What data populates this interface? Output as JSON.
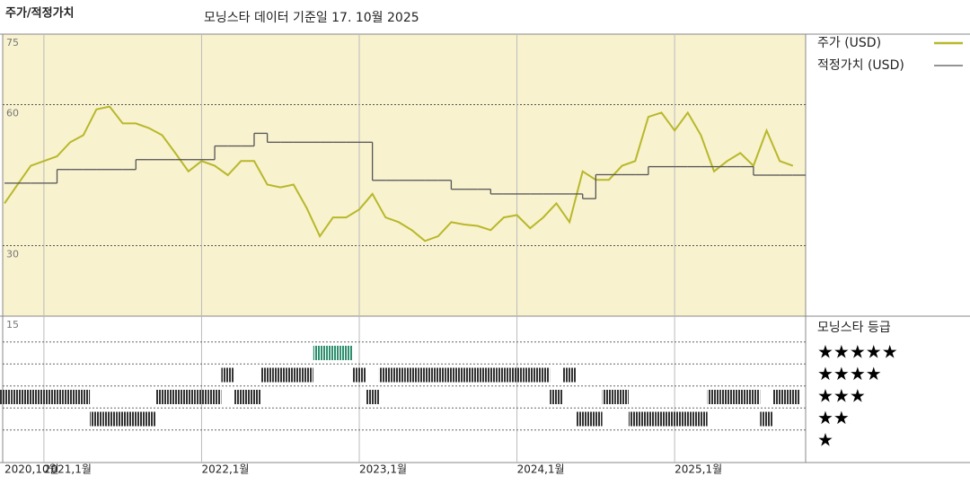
{
  "title": "주가/적정가치",
  "subtitle": "모닝스타 데이터 기준일 17. 10월 2025",
  "chart_data": {
    "type": "line",
    "x": [
      "2020-10",
      "2020-11",
      "2020-12",
      "2021-01",
      "2021-02",
      "2021-03",
      "2021-04",
      "2021-05",
      "2021-06",
      "2021-07",
      "2021-08",
      "2021-09",
      "2021-10",
      "2021-11",
      "2021-12",
      "2022-01",
      "2022-02",
      "2022-03",
      "2022-04",
      "2022-05",
      "2022-06",
      "2022-07",
      "2022-08",
      "2022-09",
      "2022-10",
      "2022-11",
      "2022-12",
      "2023-01",
      "2023-02",
      "2023-03",
      "2023-04",
      "2023-05",
      "2023-06",
      "2023-07",
      "2023-08",
      "2023-09",
      "2023-10",
      "2023-11",
      "2023-12",
      "2024-01",
      "2024-02",
      "2024-03",
      "2024-04",
      "2024-05",
      "2024-06",
      "2024-07",
      "2024-08",
      "2024-09",
      "2024-10",
      "2024-11",
      "2024-12",
      "2025-01",
      "2025-02",
      "2025-03",
      "2025-04",
      "2025-05",
      "2025-06",
      "2025-07",
      "2025-08",
      "2025-09",
      "2025-10"
    ],
    "series": [
      {
        "name": "주가 (USD)",
        "color": "#b8b82a",
        "values": [
          39,
          43,
          47,
          48,
          49,
          52,
          53.5,
          59,
          59.6,
          56,
          56,
          55,
          53.5,
          49.7,
          45.8,
          48,
          47,
          45,
          48,
          48,
          43,
          42.4,
          43,
          38,
          32,
          36,
          36,
          37.7,
          41,
          36,
          35,
          33.3,
          31,
          32,
          35,
          34.5,
          34.2,
          33.3,
          36,
          36.5,
          33.7,
          36,
          39,
          35,
          45.8,
          44,
          44,
          47,
          48,
          57.4,
          58.3,
          54.5,
          58.3,
          53.5,
          45.8,
          48,
          49.7,
          47,
          54.5,
          48,
          47
        ]
      },
      {
        "name": "적정가치 (USD)",
        "color": "#555555",
        "step": true,
        "values": [
          43.3,
          43.3,
          43.3,
          43.3,
          46.2,
          46.2,
          46.2,
          46.2,
          46.2,
          46.2,
          48.3,
          48.3,
          48.3,
          48.3,
          48.3,
          48.3,
          51.2,
          51.2,
          51.2,
          53.9,
          52,
          52,
          52,
          52,
          52,
          52,
          52,
          52,
          43.9,
          43.9,
          43.9,
          43.9,
          43.9,
          43.9,
          42,
          42,
          42,
          41,
          41,
          41,
          41,
          41,
          41,
          41,
          40,
          45.1,
          45.1,
          45.1,
          45.1,
          46.8,
          46.8,
          46.8,
          46.8,
          46.8,
          46.8,
          46.8,
          46.8,
          45,
          45,
          45,
          45
        ]
      }
    ],
    "ylim": [
      15,
      75
    ],
    "yticks": [
      75,
      60,
      30,
      15
    ],
    "grid": true,
    "xticks": [
      {
        "value": "2020-10",
        "label": "2020,10월"
      },
      {
        "value": "2021-01",
        "label": "2021,1월"
      },
      {
        "value": "2022-01",
        "label": "2022,1월"
      },
      {
        "value": "2023-01",
        "label": "2023,1월"
      },
      {
        "value": "2024-01",
        "label": "2024,1월"
      },
      {
        "value": "2025-01",
        "label": "2025,1월"
      }
    ],
    "rating": {
      "title": "모닝스타 등급",
      "levels": [
        5,
        4,
        3,
        2,
        1
      ],
      "level_labels": [
        "★★★★★",
        "★★★★",
        "★★★",
        "★★",
        "★"
      ],
      "color": "#333333",
      "highlight_color": "#2f8f6f",
      "values": [
        3,
        3,
        3,
        3,
        3,
        3,
        3,
        2,
        2,
        2,
        2,
        2,
        3,
        3,
        3,
        3,
        3,
        4,
        3,
        3,
        4,
        4,
        4,
        4,
        5,
        5,
        5,
        4,
        3,
        4,
        4,
        4,
        4,
        4,
        4,
        4,
        4,
        4,
        4,
        4,
        4,
        4,
        3,
        4,
        2,
        2,
        3,
        3,
        2,
        2,
        2,
        2,
        2,
        2,
        3,
        3,
        3,
        3,
        2,
        3,
        3
      ]
    }
  }
}
